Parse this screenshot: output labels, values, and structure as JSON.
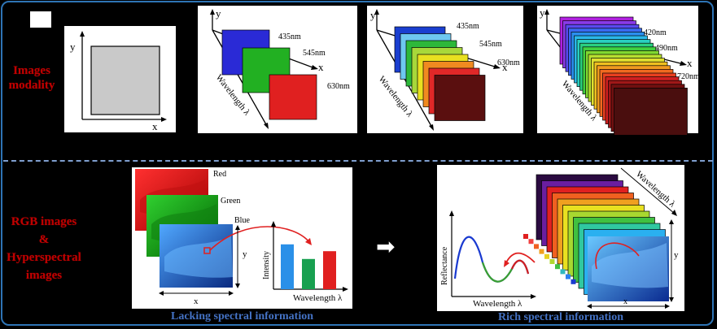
{
  "row1_label": "Images modality",
  "row2_label": [
    "RGB images",
    "&",
    "Hyperspectral",
    "images"
  ],
  "axis": {
    "x": "x",
    "y": "y",
    "wavelength": "Wavelength λ"
  },
  "rgb_cube": {
    "bands": [
      "435nm",
      "545nm",
      "630nm"
    ],
    "colors": [
      "#2a2ad6",
      "#22b022",
      "#e02020"
    ]
  },
  "multi_cube": {
    "bands": [
      "435nm",
      "545nm",
      "630nm"
    ],
    "colors": [
      "#1a3fd0",
      "#6ec8f0",
      "#2db83a",
      "#a8d83a",
      "#e8e020",
      "#f08a20",
      "#e02828",
      "#5a0f0f"
    ]
  },
  "hyper_cube": {
    "bands": [
      "420nm",
      "490nm",
      "720nm"
    ],
    "colors": [
      "#b020e0",
      "#8a3ae8",
      "#5a4af0",
      "#3a6af0",
      "#2a90f0",
      "#2ab8e8",
      "#2ad0c0",
      "#2ad080",
      "#40d040",
      "#80d830",
      "#b8e030",
      "#e0e030",
      "#f0c020",
      "#f09a20",
      "#f06a20",
      "#e84020",
      "#d02020",
      "#a01818",
      "#701010",
      "#4a0e0e"
    ]
  },
  "rgb_panel": {
    "labels": [
      "Red",
      "Green",
      "Blue"
    ],
    "intensity_label": "Intensity",
    "wavelength_label": "Wavelength λ",
    "bar_values": [
      0.92,
      0.62,
      0.78
    ],
    "bar_colors": [
      "#2a90e8",
      "#18a050",
      "#e02020"
    ]
  },
  "hsi_panel": {
    "reflectance_label": "Reflectance",
    "wavelength_label": "Wavelength λ"
  },
  "captions": {
    "left": "Lacking spectral information",
    "right": "Rich spectral information"
  },
  "arrow_glyph": "➡"
}
